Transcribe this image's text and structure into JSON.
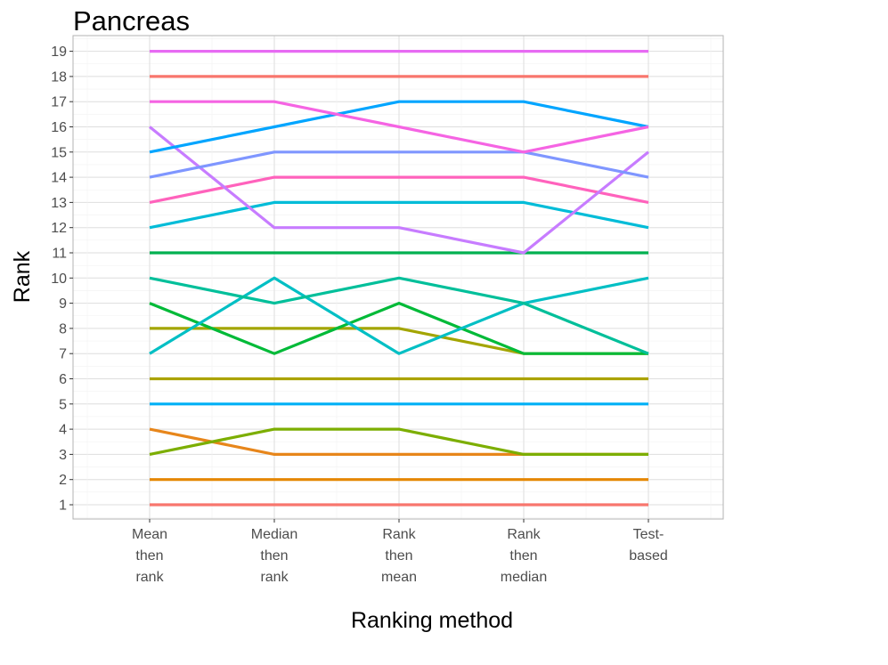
{
  "chart_data": {
    "type": "line",
    "title": "Pancreas",
    "xlabel": "Ranking method",
    "ylabel": "Rank",
    "categories": [
      [
        "Mean",
        "then",
        "rank"
      ],
      [
        "Median",
        "then",
        "rank"
      ],
      [
        "Rank",
        "then",
        "mean"
      ],
      [
        "Rank",
        "then",
        "median"
      ],
      [
        "Test-",
        "based"
      ]
    ],
    "yticks": [
      1,
      2,
      3,
      4,
      5,
      6,
      7,
      8,
      9,
      10,
      11,
      12,
      13,
      14,
      15,
      16,
      17,
      18,
      19
    ],
    "ylim": [
      0.5,
      19.5
    ],
    "grid": true,
    "legend": "none",
    "series": [
      {
        "color": "#F8766D",
        "values": [
          1,
          1,
          1,
          1,
          1
        ]
      },
      {
        "color": "#E58700",
        "values": [
          2,
          2,
          2,
          2,
          2
        ]
      },
      {
        "color": "#E7861B",
        "values": [
          4,
          3,
          3,
          3,
          3
        ]
      },
      {
        "color": "#7CAE00",
        "values": [
          3,
          4,
          4,
          3,
          3
        ]
      },
      {
        "color": "#00B0F6",
        "values": [
          5,
          5,
          5,
          5,
          5
        ]
      },
      {
        "color": "#ABA300",
        "values": [
          6,
          6,
          6,
          6,
          6
        ]
      },
      {
        "color": "#A3A500",
        "values": [
          8,
          8,
          8,
          7,
          7
        ]
      },
      {
        "color": "#00BA38",
        "values": [
          9,
          7,
          9,
          7,
          7
        ]
      },
      {
        "color": "#00BFC4",
        "values": [
          7,
          10,
          7,
          9,
          10
        ]
      },
      {
        "color": "#00BF9A",
        "values": [
          10,
          9,
          10,
          9,
          7
        ]
      },
      {
        "color": "#00B050",
        "values": [
          11,
          11,
          11,
          11,
          11
        ]
      },
      {
        "color": "#00BCD8",
        "values": [
          12,
          13,
          13,
          13,
          12
        ]
      },
      {
        "color": "#FF62BC",
        "values": [
          13,
          14,
          14,
          14,
          13
        ]
      },
      {
        "color": "#C77CFF",
        "values": [
          16,
          12,
          12,
          11,
          15
        ]
      },
      {
        "color": "#7F96FF",
        "values": [
          14,
          15,
          15,
          15,
          14
        ]
      },
      {
        "color": "#00A5FF",
        "values": [
          15,
          16,
          17,
          17,
          16
        ]
      },
      {
        "color": "#F564E3",
        "values": [
          17,
          17,
          16,
          15,
          16
        ]
      },
      {
        "color": "#F8766D",
        "values": [
          18,
          18,
          18,
          18,
          18
        ]
      },
      {
        "color": "#E76BF3",
        "values": [
          19,
          19,
          19,
          19,
          19
        ]
      }
    ]
  }
}
